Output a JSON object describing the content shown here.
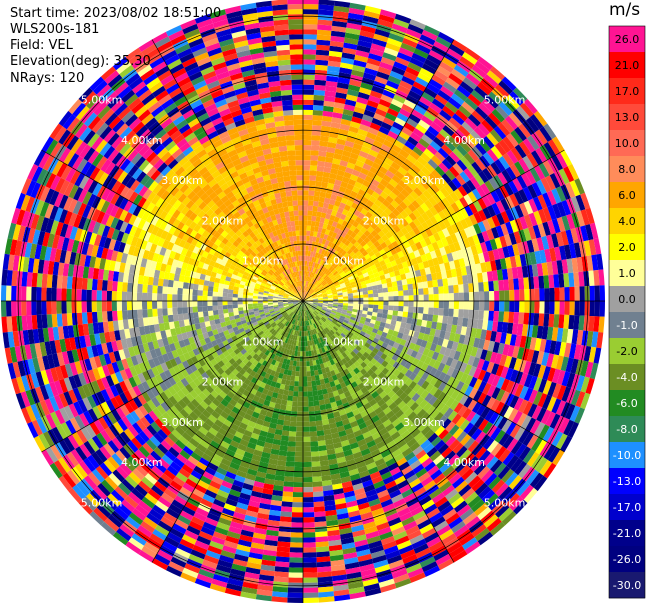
{
  "header": {
    "start_time": "Start time: 2023/08/02 18:51:00",
    "instrument": "WLS200s-181",
    "field": "Field: VEL",
    "elevation": "Elevation(deg): 35.30",
    "nrays": "NRays: 120"
  },
  "colorbar": {
    "unit": "m/s",
    "bins": [
      {
        "label": "26.0",
        "color": "#ff1493"
      },
      {
        "label": "21.0",
        "color": "#ff0000"
      },
      {
        "label": "17.0",
        "color": "#ff2a1a"
      },
      {
        "label": "13.0",
        "color": "#ff4a3a"
      },
      {
        "label": "10.0",
        "color": "#ff6a55"
      },
      {
        "label": "8.0",
        "color": "#ff8c5a"
      },
      {
        "label": "6.0",
        "color": "#ffa600"
      },
      {
        "label": "4.0",
        "color": "#ffd400"
      },
      {
        "label": "2.0",
        "color": "#ffff00"
      },
      {
        "label": "1.0",
        "color": "#ffff99"
      },
      {
        "label": "0.0",
        "color": "#a0a0a0"
      },
      {
        "label": "-1.0",
        "color": "#708090"
      },
      {
        "label": "-2.0",
        "color": "#9acd32"
      },
      {
        "label": "-4.0",
        "color": "#6b8e23"
      },
      {
        "label": "-6.0",
        "color": "#228b22"
      },
      {
        "label": "-8.0",
        "color": "#2e8b57"
      },
      {
        "label": "-10.0",
        "color": "#1e90ff"
      },
      {
        "label": "-13.0",
        "color": "#0000ff"
      },
      {
        "label": "-17.0",
        "color": "#0000cd"
      },
      {
        "label": "-21.0",
        "color": "#00008b"
      },
      {
        "label": "-26.0",
        "color": "#000080"
      },
      {
        "label": "-30.0",
        "color": "#191970"
      }
    ]
  },
  "chart_data": {
    "type": "heatmap",
    "projection": "polar (PPI scan)",
    "field": "VEL",
    "units": "m/s",
    "nrays": 120,
    "range_rings_km": [
      1.0,
      2.0,
      3.0,
      4.0,
      5.0
    ],
    "range_ring_labels": [
      "1.00km",
      "2.00km",
      "3.00km",
      "4.00km",
      "5.00km"
    ],
    "max_range_km": 5.3,
    "color_levels": [
      26.0,
      21.0,
      17.0,
      13.0,
      10.0,
      8.0,
      6.0,
      4.0,
      2.0,
      1.0,
      0.0,
      -1.0,
      -2.0,
      -4.0,
      -6.0,
      -8.0,
      -10.0,
      -13.0,
      -17.0,
      -21.0,
      -26.0,
      -30.0
    ],
    "pattern": {
      "inner_range_km": 3.2,
      "positive_sector": "north (yellow/orange, 2 to 6 m/s)",
      "negative_sector": "south (green, -2 to -8 m/s)",
      "zero_line": "east-west (grey)",
      "outer_range": "noise (mixed colors)"
    }
  }
}
